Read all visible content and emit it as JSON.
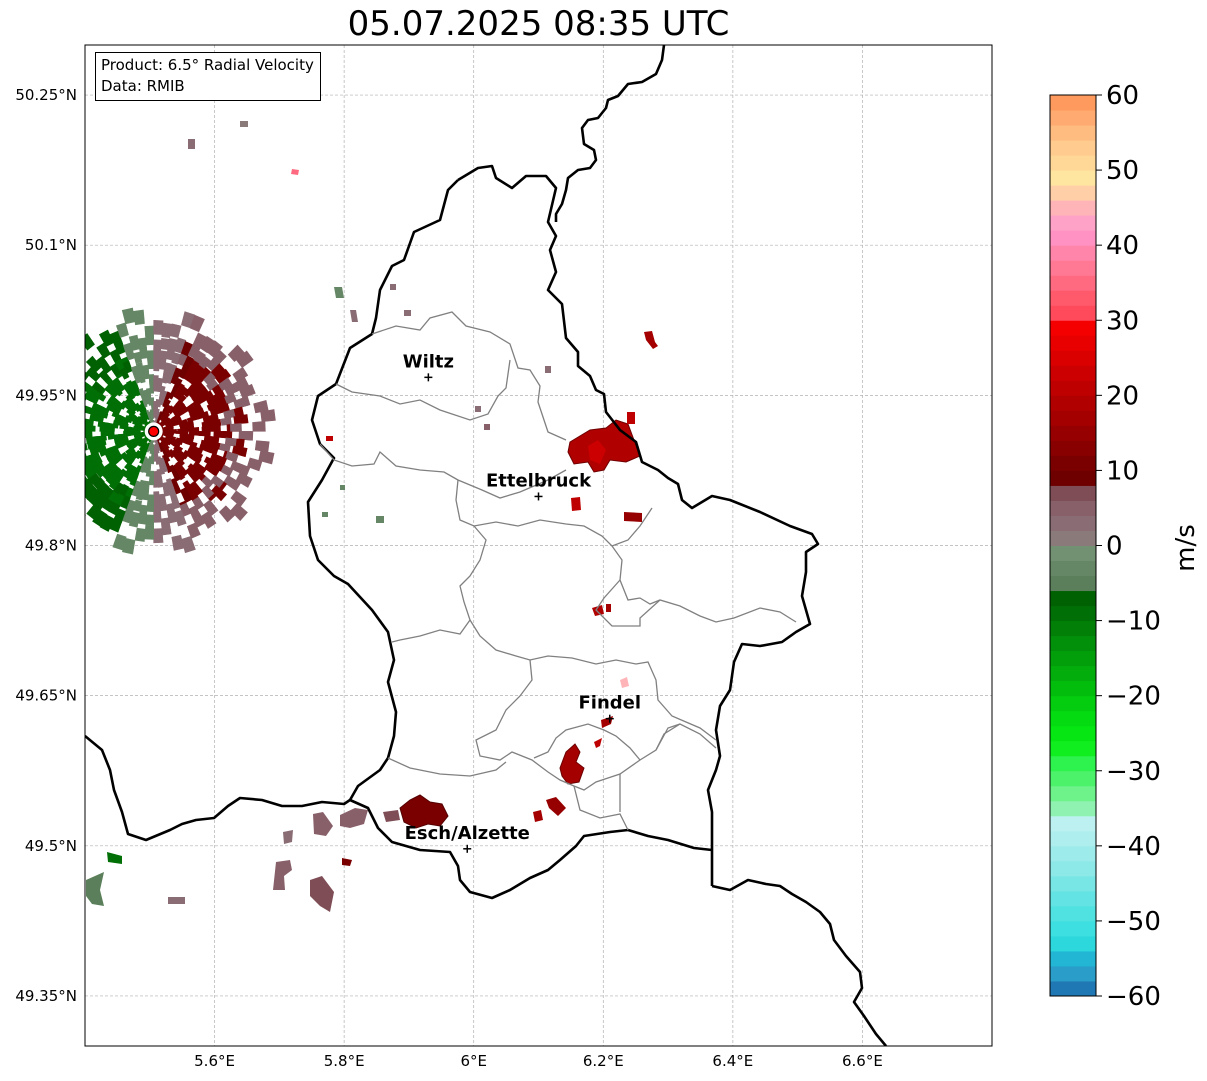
{
  "title": "05.07.2025 08:35 UTC",
  "info": {
    "product": "Product: 6.5° Radial Velocity",
    "source": "Data: RMIB"
  },
  "map": {
    "extent": {
      "lon": [
        5.4,
        6.8
      ],
      "lat": [
        49.3,
        50.3
      ]
    },
    "lon_ticks": [
      {
        "value": 5.6,
        "label": "5.6°E"
      },
      {
        "value": 5.8,
        "label": "5.8°E"
      },
      {
        "value": 6.0,
        "label": "6°E"
      },
      {
        "value": 6.2,
        "label": "6.2°E"
      },
      {
        "value": 6.4,
        "label": "6.4°E"
      },
      {
        "value": 6.6,
        "label": "6.6°E"
      }
    ],
    "lat_ticks": [
      {
        "value": 49.35,
        "label": "49.35°N"
      },
      {
        "value": 49.5,
        "label": "49.5°N"
      },
      {
        "value": 49.65,
        "label": "49.65°N"
      },
      {
        "value": 49.8,
        "label": "49.8°N"
      },
      {
        "value": 49.95,
        "label": "49.95°N"
      },
      {
        "value": 50.1,
        "label": "50.1°N"
      },
      {
        "value": 50.25,
        "label": "50.25°N"
      }
    ],
    "grid": true,
    "cities": [
      {
        "name": "Wiltz",
        "lon": 5.93,
        "lat": 49.968
      },
      {
        "name": "Ettelbruck",
        "lon": 6.1,
        "lat": 49.849
      },
      {
        "name": "Findel",
        "lon": 6.21,
        "lat": 49.627
      },
      {
        "name": "Esch/Alzette",
        "lon": 5.99,
        "lat": 49.497
      }
    ],
    "radar": {
      "lon": 5.506,
      "lat": 49.914,
      "range_deg_lon": 0.18,
      "range_deg_lat": 0.12
    },
    "colors": {
      "border": "#000000",
      "cantons": "#808080",
      "grid": "#b0b0b0",
      "radar_marker": "#ff0000"
    }
  },
  "colorbar": {
    "label": "m/s",
    "min": -60,
    "max": 60,
    "ticks": [
      {
        "value": 60,
        "label": "60"
      },
      {
        "value": 50,
        "label": "50"
      },
      {
        "value": 40,
        "label": "40"
      },
      {
        "value": 30,
        "label": "30"
      },
      {
        "value": 20,
        "label": "20"
      },
      {
        "value": 10,
        "label": "10"
      },
      {
        "value": 0,
        "label": "0"
      },
      {
        "value": -10,
        "label": "−10"
      },
      {
        "value": -20,
        "label": "−20"
      },
      {
        "value": -30,
        "label": "−30"
      },
      {
        "value": -40,
        "label": "−40"
      },
      {
        "value": -50,
        "label": "−50"
      },
      {
        "value": -60,
        "label": "−60"
      }
    ],
    "stops": [
      {
        "from": -60,
        "to": -58,
        "color": "#1f78b4"
      },
      {
        "from": -58,
        "to": -56,
        "color": "#2a9dc8"
      },
      {
        "from": -56,
        "to": -54,
        "color": "#22b5d4"
      },
      {
        "from": -54,
        "to": -52,
        "color": "#2dd8dc"
      },
      {
        "from": -52,
        "to": -50,
        "color": "#3ddfe0"
      },
      {
        "from": -50,
        "to": -48,
        "color": "#50e1e1"
      },
      {
        "from": -48,
        "to": -46,
        "color": "#63e3e3"
      },
      {
        "from": -46,
        "to": -44,
        "color": "#79e6e6"
      },
      {
        "from": -44,
        "to": -42,
        "color": "#8de8e8"
      },
      {
        "from": -42,
        "to": -40,
        "color": "#9eebeb"
      },
      {
        "from": -40,
        "to": -38,
        "color": "#aeeeee"
      },
      {
        "from": -38,
        "to": -36,
        "color": "#bdf1f1"
      },
      {
        "from": -36,
        "to": -34,
        "color": "#8ff2b0"
      },
      {
        "from": -34,
        "to": -32,
        "color": "#6ef28a"
      },
      {
        "from": -32,
        "to": -30,
        "color": "#4cf26a"
      },
      {
        "from": -30,
        "to": -28,
        "color": "#2ef24d"
      },
      {
        "from": -28,
        "to": -26,
        "color": "#10ee20"
      },
      {
        "from": -26,
        "to": -24,
        "color": "#05e612"
      },
      {
        "from": -24,
        "to": -22,
        "color": "#04db10"
      },
      {
        "from": -22,
        "to": -20,
        "color": "#04cc0e"
      },
      {
        "from": -20,
        "to": -18,
        "color": "#03bd0d"
      },
      {
        "from": -18,
        "to": -16,
        "color": "#03ae0c"
      },
      {
        "from": -16,
        "to": -14,
        "color": "#029f0b"
      },
      {
        "from": -14,
        "to": -12,
        "color": "#02900a"
      },
      {
        "from": -12,
        "to": -10,
        "color": "#017f07"
      },
      {
        "from": -10,
        "to": -8,
        "color": "#006f05"
      },
      {
        "from": -8,
        "to": -6,
        "color": "#006103"
      },
      {
        "from": -6,
        "to": -4,
        "color": "#5a7f5a"
      },
      {
        "from": -4,
        "to": -2,
        "color": "#668766"
      },
      {
        "from": -2,
        "to": 0,
        "color": "#729072"
      },
      {
        "from": 0,
        "to": 2,
        "color": "#8a7a7a"
      },
      {
        "from": 2,
        "to": 4,
        "color": "#8a6c74"
      },
      {
        "from": 4,
        "to": 6,
        "color": "#88606a"
      },
      {
        "from": 6,
        "to": 8,
        "color": "#7e4d55"
      },
      {
        "from": 8,
        "to": 10,
        "color": "#6e0000"
      },
      {
        "from": 10,
        "to": 12,
        "color": "#7a0000"
      },
      {
        "from": 12,
        "to": 14,
        "color": "#880000"
      },
      {
        "from": 14,
        "to": 16,
        "color": "#960000"
      },
      {
        "from": 16,
        "to": 18,
        "color": "#a40000"
      },
      {
        "from": 18,
        "to": 20,
        "color": "#b00000"
      },
      {
        "from": 20,
        "to": 22,
        "color": "#bf0000"
      },
      {
        "from": 22,
        "to": 24,
        "color": "#cc0000"
      },
      {
        "from": 24,
        "to": 26,
        "color": "#da0000"
      },
      {
        "from": 26,
        "to": 28,
        "color": "#e80000"
      },
      {
        "from": 28,
        "to": 30,
        "color": "#f40000"
      },
      {
        "from": 30,
        "to": 32,
        "color": "#ff4a5c"
      },
      {
        "from": 32,
        "to": 34,
        "color": "#ff5a6c"
      },
      {
        "from": 34,
        "to": 36,
        "color": "#ff6a80"
      },
      {
        "from": 36,
        "to": 38,
        "color": "#ff7894"
      },
      {
        "from": 38,
        "to": 40,
        "color": "#ff86aa"
      },
      {
        "from": 40,
        "to": 42,
        "color": "#ff92c2"
      },
      {
        "from": 42,
        "to": 44,
        "color": "#ffa2c8"
      },
      {
        "from": 44,
        "to": 46,
        "color": "#ffb4b8"
      },
      {
        "from": 46,
        "to": 48,
        "color": "#ffd0a8"
      },
      {
        "from": 48,
        "to": 50,
        "color": "#ffe6a0"
      },
      {
        "from": 50,
        "to": 52,
        "color": "#ffd898"
      },
      {
        "from": 52,
        "to": 54,
        "color": "#ffcb8e"
      },
      {
        "from": 54,
        "to": 56,
        "color": "#ffbc80"
      },
      {
        "from": 56,
        "to": 58,
        "color": "#ffaa70"
      },
      {
        "from": 58,
        "to": 60,
        "color": "#ff9a5e"
      }
    ]
  }
}
